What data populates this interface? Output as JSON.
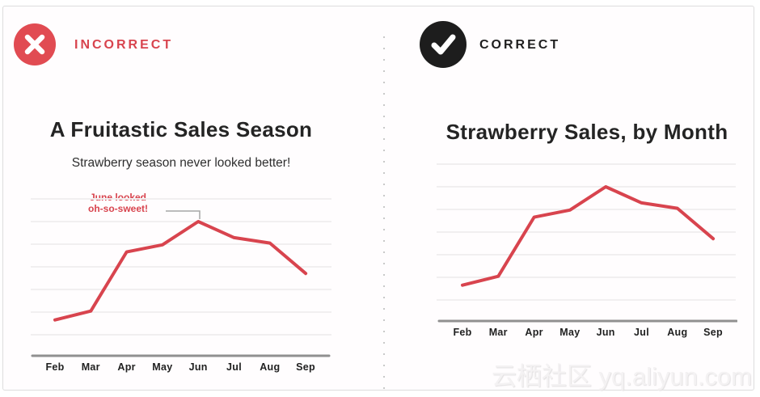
{
  "header": {
    "incorrect_label": "INCORRECT",
    "correct_label": "CORRECT"
  },
  "icons": {
    "incorrect": "x-circle-icon",
    "correct": "check-circle-icon"
  },
  "colors": {
    "accent_red": "#d8444e",
    "badge_red": "#e14b52",
    "badge_black": "#1d1d1d",
    "gridline": "#f1eff0",
    "axis": "#909090"
  },
  "watermark": "云栖社区 yq.aliyun.com",
  "chart_data": [
    {
      "type": "line",
      "title": "A Fruitastic Sales Season",
      "subtitle": "Strawberry season never looked better!",
      "annotation": {
        "text_line1": "June looked",
        "text_line2": "oh-so-sweet!",
        "target": "Jun"
      },
      "categories": [
        "Feb",
        "Mar",
        "Apr",
        "May",
        "Jun",
        "Jul",
        "Aug",
        "Sep"
      ],
      "values": [
        20,
        25,
        58,
        62,
        75,
        66,
        63,
        46
      ],
      "xlabel": "",
      "ylabel": "",
      "ylim": [
        0,
        90
      ],
      "grid": true,
      "legend": false,
      "y_tick_labels_shown": false,
      "line_color": "#d8444e"
    },
    {
      "type": "line",
      "title": "Strawberry Sales, by Month",
      "categories": [
        "Feb",
        "Mar",
        "Apr",
        "May",
        "Jun",
        "Jul",
        "Aug",
        "Sep"
      ],
      "values": [
        20,
        25,
        58,
        62,
        75,
        66,
        63,
        46
      ],
      "xlabel": "",
      "ylabel": "",
      "ylim": [
        0,
        90
      ],
      "grid": true,
      "legend": false,
      "y_tick_labels_shown": false,
      "line_color": "#d8444e"
    }
  ]
}
